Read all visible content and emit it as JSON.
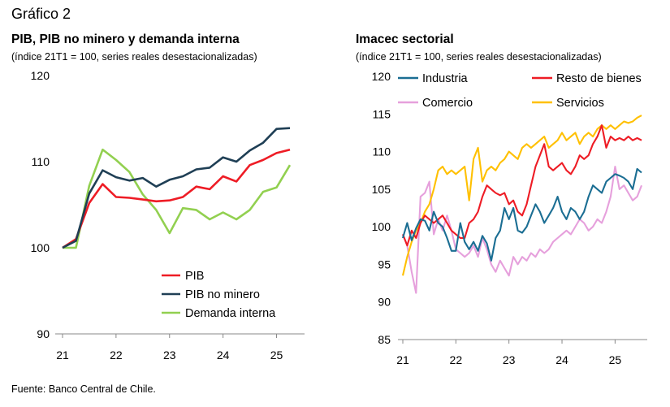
{
  "figure_label": "Gráfico 2",
  "source": "Fuente: Banco Central de Chile.",
  "chart_data": [
    {
      "type": "line",
      "title": "PIB, PIB no minero y demanda interna",
      "subtitle": "(índice 21T1 = 100, series reales desestacionalizadas)",
      "x_ticks": [
        "21",
        "22",
        "23",
        "24",
        "25"
      ],
      "x": [
        "21T1",
        "21T2",
        "21T3",
        "21T4",
        "22T1",
        "22T2",
        "22T3",
        "22T4",
        "23T1",
        "23T2",
        "23T3",
        "23T4",
        "24T1",
        "24T2",
        "24T3",
        "24T4",
        "25T1",
        "25T2"
      ],
      "ylim": [
        90,
        120
      ],
      "y_ticks": [
        90,
        100,
        110,
        120
      ],
      "legend_position": "bottom-right",
      "series": [
        {
          "name": "PIB",
          "color": "#ee1c25",
          "values": [
            100,
            101.0,
            105.2,
            107.4,
            105.9,
            105.8,
            105.6,
            105.4,
            105.5,
            105.9,
            107.1,
            106.8,
            108.3,
            107.7,
            109.6,
            110.2,
            111.0,
            111.4
          ]
        },
        {
          "name": "PIB no minero",
          "color": "#1f3f55",
          "values": [
            100,
            100.8,
            106.3,
            109.0,
            108.2,
            107.8,
            108.1,
            107.1,
            107.9,
            108.3,
            109.1,
            109.3,
            110.5,
            110.0,
            111.3,
            112.2,
            113.8,
            113.9
          ]
        },
        {
          "name": "Demanda interna",
          "color": "#92d050",
          "values": [
            100,
            100.0,
            107.2,
            111.4,
            110.2,
            108.8,
            106.2,
            104.4,
            101.7,
            104.6,
            104.4,
            103.3,
            104.1,
            103.3,
            104.4,
            106.5,
            107.0,
            109.6
          ]
        }
      ]
    },
    {
      "type": "line",
      "title": "Imacec sectorial",
      "subtitle": "(índice 21T1 = 100, series reales desestacionalizadas)",
      "x_ticks": [
        "21",
        "22",
        "23",
        "24",
        "25"
      ],
      "x_start": "2021-01",
      "frequency": "monthly",
      "ylim": [
        85,
        120
      ],
      "y_ticks": [
        85,
        90,
        95,
        100,
        105,
        110,
        115,
        120
      ],
      "legend_position": "top",
      "series": [
        {
          "name": "Industria",
          "color": "#1b6e93",
          "values": [
            98.5,
            100.5,
            98.2,
            99.8,
            101.0,
            100.8,
            99.5,
            102.0,
            100.5,
            100.0,
            98.5,
            96.8,
            96.8,
            100.5,
            98.0,
            97.0,
            98.0,
            96.8,
            98.8,
            97.8,
            95.5,
            98.5,
            99.5,
            102.5,
            101.0,
            102.5,
            99.5,
            99.2,
            100.0,
            101.5,
            103.0,
            102.0,
            100.5,
            101.5,
            102.5,
            104.0,
            102.0,
            101.0,
            102.5,
            102.0,
            101.0,
            102.0,
            104.0,
            105.5,
            105.0,
            104.5,
            106.0,
            106.5,
            107.0,
            106.8,
            106.5,
            106.0,
            105.0,
            107.7,
            107.2
          ]
        },
        {
          "name": "Resto de bienes",
          "color": "#ee1c25",
          "values": [
            99.0,
            97.5,
            99.5,
            98.5,
            100.5,
            101.5,
            101.0,
            100.5,
            101.0,
            101.5,
            100.5,
            99.5,
            99.0,
            98.5,
            98.5,
            100.5,
            101.0,
            102.0,
            104.0,
            105.5,
            105.0,
            104.5,
            104.2,
            104.5,
            103.0,
            103.5,
            102.0,
            101.5,
            103.0,
            105.5,
            108.0,
            109.5,
            111.0,
            108.0,
            107.5,
            108.0,
            108.5,
            107.5,
            107.0,
            108.0,
            109.5,
            109.0,
            109.5,
            111.0,
            112.0,
            113.5,
            110.5,
            112.0,
            111.5,
            111.8,
            111.5,
            112.0,
            111.5,
            111.8,
            111.5
          ]
        },
        {
          "name": "Comercio",
          "color": "#e6a0dc",
          "values": [
            99.0,
            97.5,
            94.0,
            91.2,
            104.0,
            104.5,
            106.0,
            99.0,
            101.0,
            99.5,
            101.5,
            99.5,
            97.0,
            96.5,
            96.0,
            96.5,
            97.5,
            96.0,
            98.5,
            97.0,
            95.0,
            94.0,
            95.5,
            94.5,
            93.5,
            96.0,
            95.0,
            96.0,
            95.5,
            96.5,
            96.0,
            97.0,
            96.5,
            97.0,
            98.0,
            98.5,
            99.0,
            99.5,
            99.0,
            100.0,
            101.0,
            100.5,
            99.5,
            100.0,
            101.0,
            100.5,
            102.0,
            104.0,
            108.0,
            105.0,
            105.5,
            104.5,
            103.5,
            104.0,
            105.5
          ]
        },
        {
          "name": "Servicios",
          "color": "#ffc000",
          "values": [
            93.5,
            96.0,
            98.0,
            99.5,
            100.5,
            102.0,
            103.0,
            105.0,
            107.5,
            108.0,
            107.0,
            107.5,
            107.0,
            107.5,
            108.0,
            103.5,
            109.0,
            110.5,
            106.0,
            107.5,
            108.0,
            107.5,
            108.5,
            109.0,
            110.0,
            109.5,
            109.0,
            110.5,
            111.0,
            110.5,
            111.0,
            111.5,
            112.0,
            110.5,
            111.0,
            111.5,
            112.5,
            111.5,
            112.0,
            112.5,
            111.0,
            112.0,
            112.5,
            112.0,
            113.0,
            113.5,
            113.0,
            113.5,
            113.0,
            113.5,
            114.0,
            113.8,
            114.0,
            114.5,
            114.8
          ]
        }
      ]
    }
  ]
}
